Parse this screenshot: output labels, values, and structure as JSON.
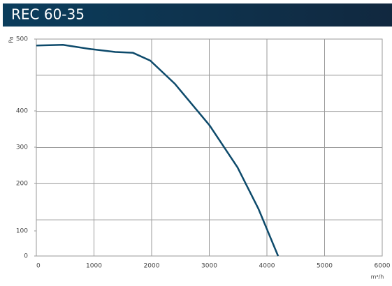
{
  "chart_data": {
    "type": "line",
    "title": "REC 60-35",
    "y_label": "Pa",
    "x_label": "m³/h",
    "x": [
      0,
      461,
      945,
      1370,
      1673,
      1976,
      2400,
      3006,
      3491,
      3855,
      4194
    ],
    "series": [
      {
        "name": "REC 60-35",
        "color": "#0d4a6b",
        "values": [
          491,
          492,
          486,
          482,
          481,
          470,
          438,
          360,
          244,
          146,
          0
        ]
      }
    ],
    "xlim": [
      0,
      6000
    ],
    "xticks": [
      0,
      1000,
      2000,
      3000,
      4000,
      5000,
      6000
    ],
    "ylim": [
      0,
      500
    ],
    "yticks": [
      0,
      100,
      200,
      300,
      400,
      500
    ],
    "grid": true
  }
}
